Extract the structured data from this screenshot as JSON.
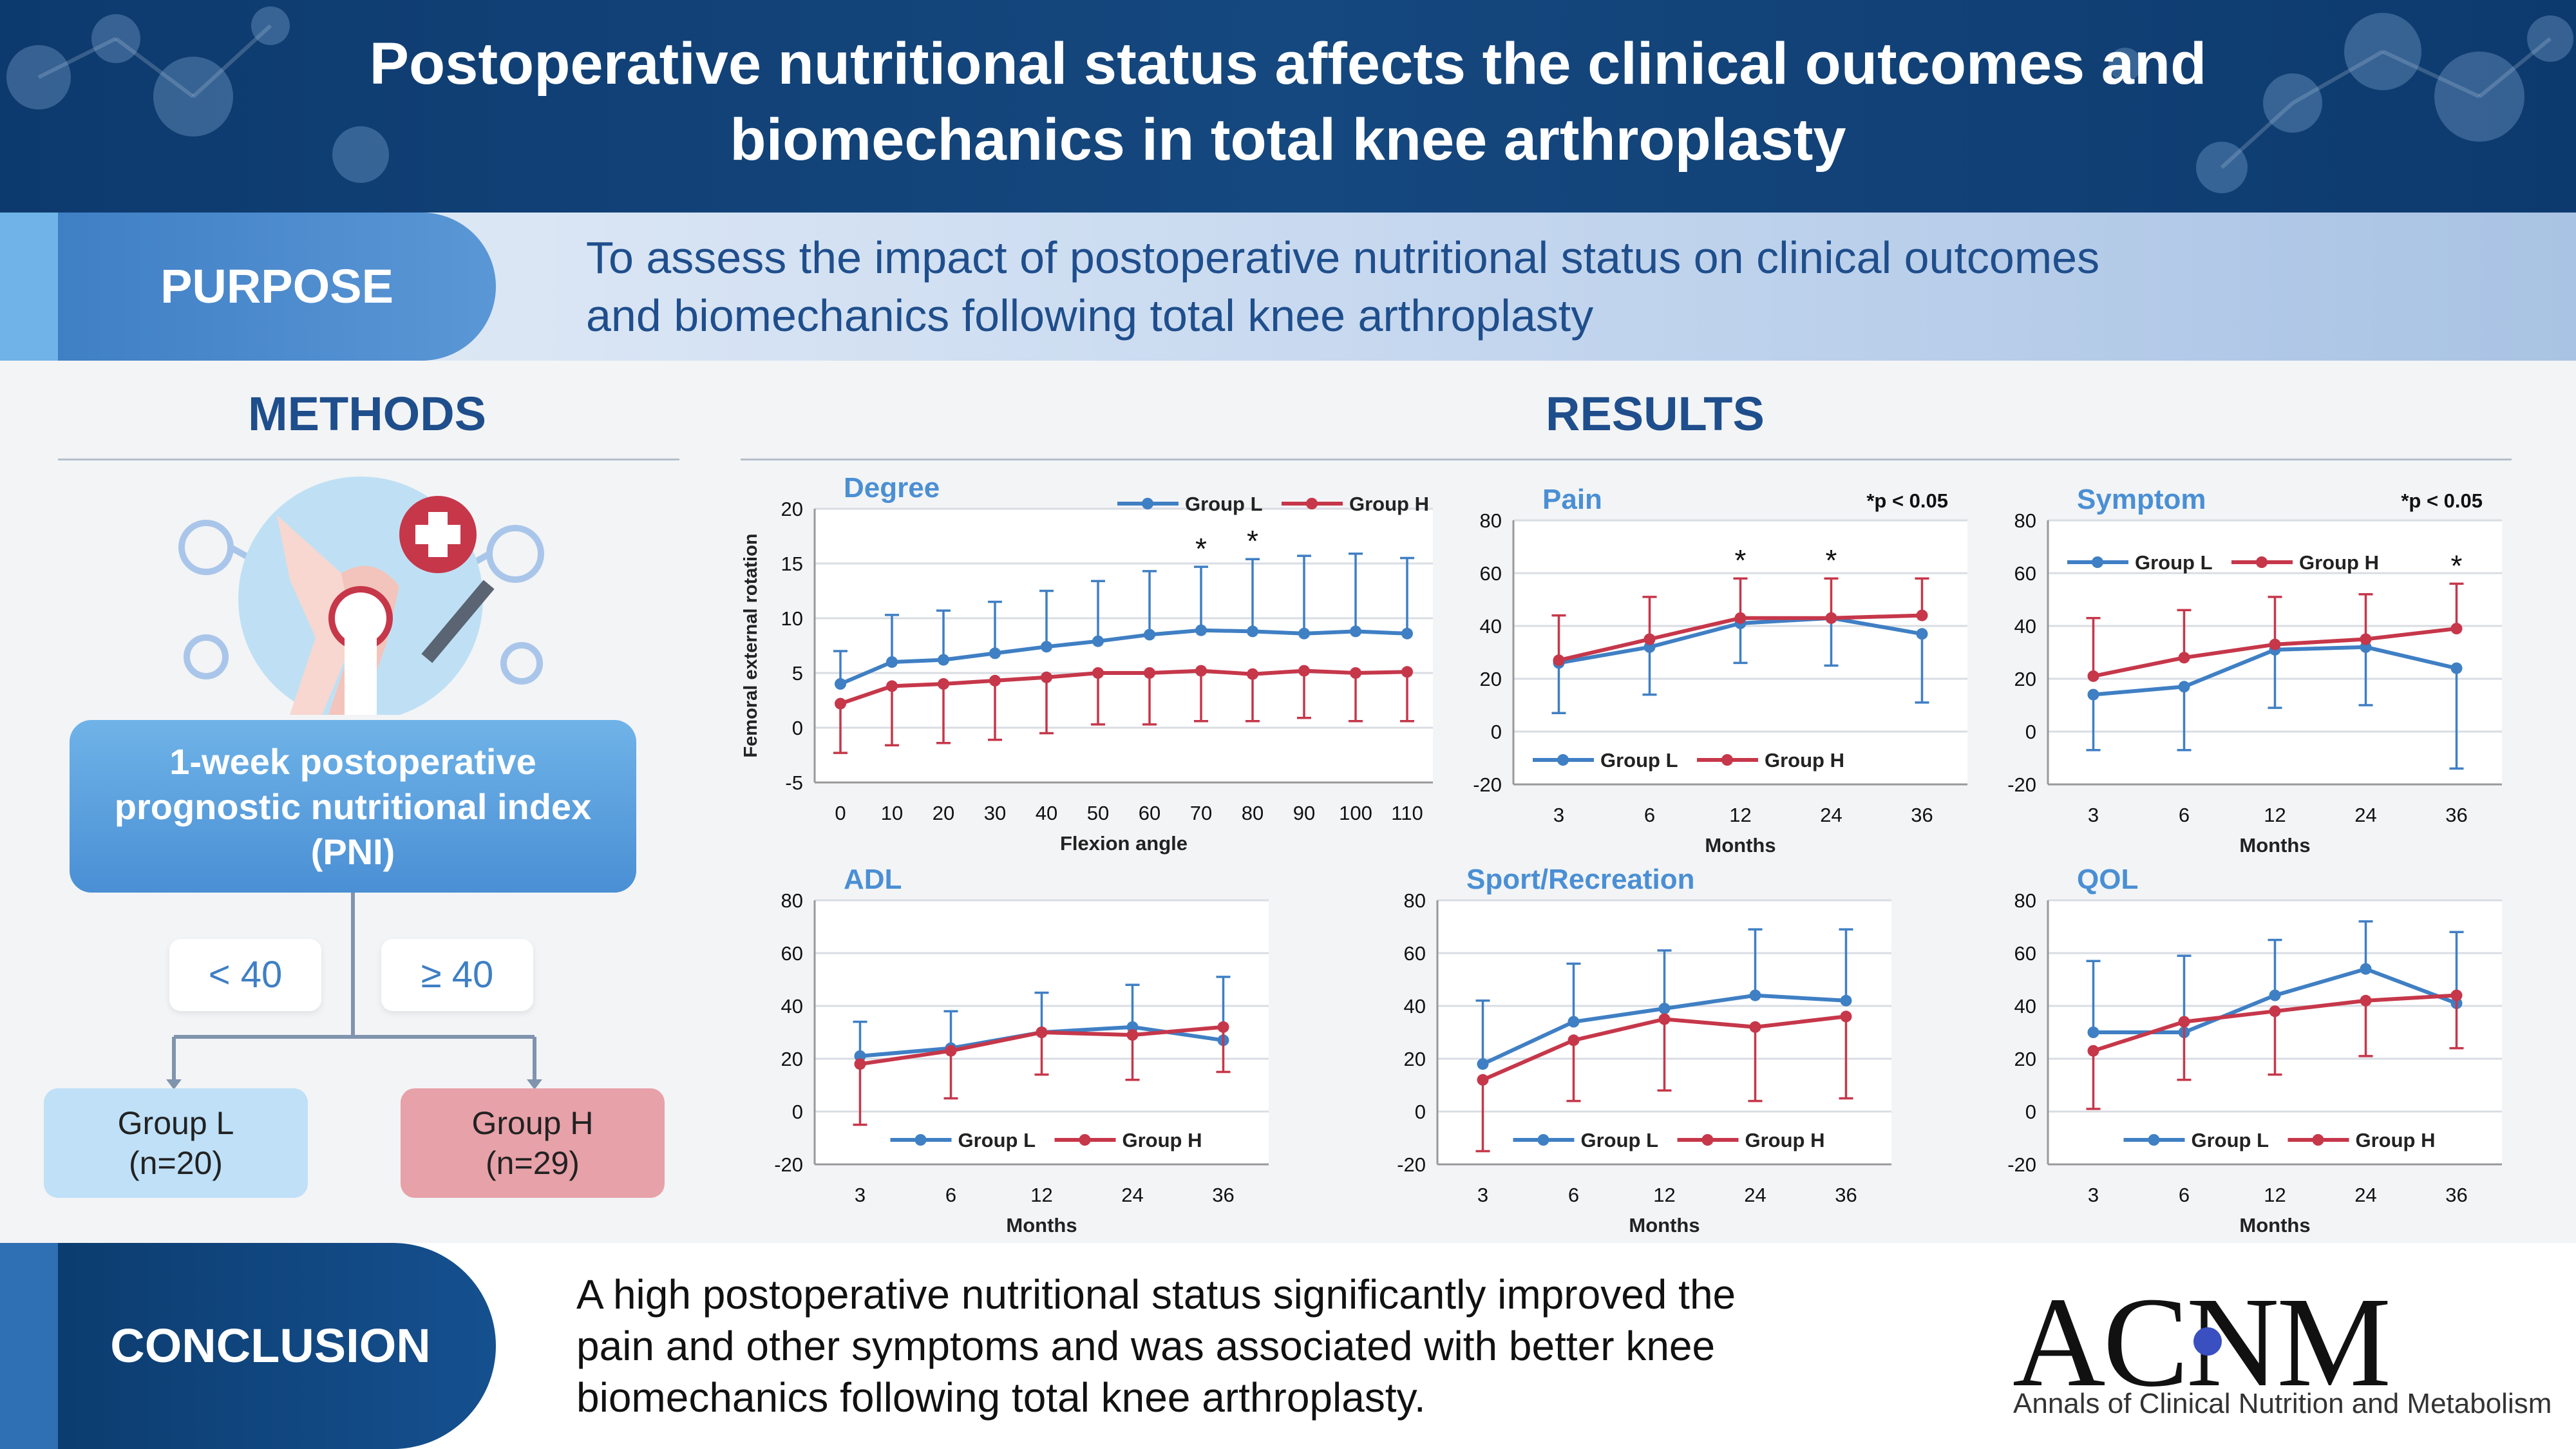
{
  "header": {
    "title_line1": "Postoperative nutritional status affects the clinical outcomes and",
    "title_line2": "biomechanics in total knee arthroplasty"
  },
  "purpose": {
    "label": "PURPOSE",
    "text_line1": "To assess the impact of postoperative nutritional status on clinical outcomes",
    "text_line2": "and biomechanics following total knee arthroplasty"
  },
  "methods": {
    "title": "METHODS",
    "pni_line1": "1-week postoperative",
    "pni_line2": "prognostic nutritional index",
    "pni_line3": "(PNI)",
    "lt": "< 40",
    "ge": "≥ 40",
    "group_l_name": "Group L",
    "group_l_n": "(n=20)",
    "group_h_name": "Group H",
    "group_h_n": "(n=29)"
  },
  "results": {
    "title": "RESULTS"
  },
  "conclusion": {
    "label": "CONCLUSION",
    "line1": "A high postoperative nutritional status significantly improved the",
    "line2": "pain and other symptoms and was associated with better knee",
    "line3": "biomechanics following total knee arthroplasty."
  },
  "journal": {
    "logo": "ACNM",
    "name": "Annals of Clinical Nutrition and Metabolism"
  },
  "colors": {
    "group_l": "#3f7fc4",
    "group_h": "#c6374a",
    "title_blue": "#1f4e8c",
    "panel_title": "#4a8fd4"
  },
  "chart_data": [
    {
      "id": "degree",
      "type": "line",
      "title": "Degree",
      "xlabel": "Flexion angle",
      "ylabel": "Femoral external rotation",
      "categories": [
        "0",
        "10",
        "20",
        "30",
        "40",
        "50",
        "60",
        "70",
        "80",
        "90",
        "100",
        "110"
      ],
      "ylim": [
        -5,
        20
      ],
      "yticks": [
        "-5",
        "0",
        "5",
        "10",
        "15",
        "20"
      ],
      "legend": "top-right",
      "note": "",
      "sig_markers": [
        "",
        "",
        "",
        "",
        "",
        "",
        "",
        "*",
        "*",
        "",
        "",
        ""
      ],
      "series": [
        {
          "name": "Group L",
          "values": [
            4,
            6,
            6.2,
            6.8,
            7.4,
            7.9,
            8.5,
            8.9,
            8.8,
            8.6,
            8.8,
            8.6
          ],
          "err": [
            3,
            4.3,
            4.5,
            4.7,
            5.1,
            5.5,
            5.8,
            5.8,
            6.6,
            7.1,
            7.1,
            6.9
          ],
          "err_dir": "up"
        },
        {
          "name": "Group H",
          "values": [
            2.2,
            3.8,
            4,
            4.3,
            4.6,
            5,
            5,
            5.2,
            4.9,
            5.2,
            5,
            5.1
          ],
          "err": [
            4.5,
            5.4,
            5.4,
            5.4,
            5.1,
            4.7,
            4.7,
            4.6,
            4.3,
            4.3,
            4.4,
            4.5
          ],
          "err_dir": "down"
        }
      ]
    },
    {
      "id": "pain",
      "type": "line",
      "title": "Pain",
      "xlabel": "Months",
      "ylabel": "",
      "categories": [
        "3",
        "6",
        "12",
        "24",
        "36"
      ],
      "ylim": [
        -20,
        80
      ],
      "yticks": [
        "-20",
        "0",
        "20",
        "40",
        "60",
        "80"
      ],
      "legend": "bottom-left",
      "note": "*p < 0.05",
      "sig_markers": [
        "",
        "",
        "*",
        "*",
        ""
      ],
      "series": [
        {
          "name": "Group L",
          "values": [
            26,
            32,
            41,
            43,
            37
          ],
          "err": [
            19,
            18,
            15,
            18,
            26
          ],
          "err_dir": "down"
        },
        {
          "name": "Group H",
          "values": [
            27,
            35,
            43,
            43,
            44
          ],
          "err": [
            17,
            16,
            15,
            15,
            14
          ],
          "err_dir": "up"
        }
      ]
    },
    {
      "id": "symptom",
      "type": "line",
      "title": "Symptom",
      "xlabel": "Months",
      "ylabel": "",
      "categories": [
        "3",
        "6",
        "12",
        "24",
        "36"
      ],
      "ylim": [
        -20,
        80
      ],
      "yticks": [
        "-20",
        "0",
        "20",
        "40",
        "60",
        "80"
      ],
      "legend": "top-left",
      "note": "*p < 0.05",
      "sig_markers": [
        "",
        "",
        "",
        "",
        "*"
      ],
      "series": [
        {
          "name": "Group L",
          "values": [
            14,
            17,
            31,
            32,
            24
          ],
          "err": [
            21,
            24,
            22,
            22,
            38
          ],
          "err_dir": "down"
        },
        {
          "name": "Group H",
          "values": [
            21,
            28,
            33,
            35,
            39
          ],
          "err": [
            22,
            18,
            18,
            17,
            17
          ],
          "err_dir": "up"
        }
      ]
    },
    {
      "id": "adl",
      "type": "line",
      "title": "ADL",
      "xlabel": "Months",
      "ylabel": "",
      "categories": [
        "3",
        "6",
        "12",
        "24",
        "36"
      ],
      "ylim": [
        -20,
        80
      ],
      "yticks": [
        "-20",
        "0",
        "20",
        "40",
        "60",
        "80"
      ],
      "legend": "bottom-center",
      "note": "",
      "sig_markers": [
        "",
        "",
        "",
        "",
        ""
      ],
      "series": [
        {
          "name": "Group L",
          "values": [
            21,
            24,
            30,
            32,
            27
          ],
          "err": [
            13,
            14,
            15,
            16,
            24
          ],
          "err_dir": "up"
        },
        {
          "name": "Group H",
          "values": [
            18,
            23,
            30,
            29,
            32
          ],
          "err": [
            23,
            18,
            16,
            17,
            17
          ],
          "err_dir": "down"
        }
      ]
    },
    {
      "id": "sport",
      "type": "line",
      "title": "Sport/Recreation",
      "xlabel": "Months",
      "ylabel": "",
      "categories": [
        "3",
        "6",
        "12",
        "24",
        "36"
      ],
      "ylim": [
        -20,
        80
      ],
      "yticks": [
        "-20",
        "0",
        "20",
        "40",
        "60",
        "80"
      ],
      "legend": "bottom-center",
      "note": "",
      "sig_markers": [
        "",
        "",
        "",
        "",
        ""
      ],
      "series": [
        {
          "name": "Group L",
          "values": [
            18,
            34,
            39,
            44,
            42
          ],
          "err": [
            24,
            22,
            22,
            25,
            27
          ],
          "err_dir": "up"
        },
        {
          "name": "Group H",
          "values": [
            12,
            27,
            35,
            32,
            36
          ],
          "err": [
            27,
            23,
            27,
            28,
            31
          ],
          "err_dir": "down"
        }
      ]
    },
    {
      "id": "qol",
      "type": "line",
      "title": "QOL",
      "xlabel": "Months",
      "ylabel": "",
      "categories": [
        "3",
        "6",
        "12",
        "24",
        "36"
      ],
      "ylim": [
        -20,
        80
      ],
      "yticks": [
        "-20",
        "0",
        "20",
        "40",
        "60",
        "80"
      ],
      "legend": "bottom-center",
      "note": "",
      "sig_markers": [
        "",
        "",
        "",
        "",
        ""
      ],
      "series": [
        {
          "name": "Group L",
          "values": [
            30,
            30,
            44,
            54,
            41
          ],
          "err": [
            27,
            29,
            21,
            18,
            27
          ],
          "err_dir": "up"
        },
        {
          "name": "Group H",
          "values": [
            23,
            34,
            38,
            42,
            44
          ],
          "err": [
            22,
            22,
            24,
            21,
            20
          ],
          "err_dir": "down"
        }
      ]
    }
  ]
}
